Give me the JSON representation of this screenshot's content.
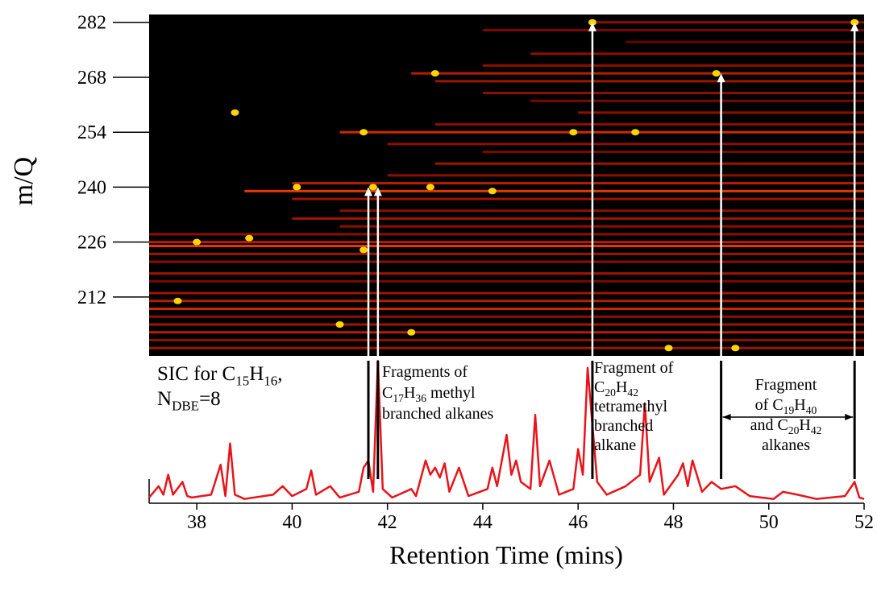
{
  "chart_data": {
    "type": "heatmap-sic",
    "xlabel": "Retention Time (mins)",
    "ylabel": "m/Q",
    "xlim": [
      37,
      52
    ],
    "xticks": [
      38,
      40,
      42,
      44,
      46,
      48,
      50,
      52
    ],
    "ylim": [
      197,
      284
    ],
    "yticks": [
      212,
      226,
      240,
      254,
      268,
      282
    ],
    "streaks": [
      {
        "mz": 282,
        "start": 46.3,
        "end": 52,
        "intensity": 0.5
      },
      {
        "mz": 280,
        "start": 44,
        "end": 52,
        "intensity": 0.4
      },
      {
        "mz": 277,
        "start": 47,
        "end": 52,
        "intensity": 0.3
      },
      {
        "mz": 274,
        "start": 45,
        "end": 52,
        "intensity": 0.5
      },
      {
        "mz": 271,
        "start": 44,
        "end": 52,
        "intensity": 0.5
      },
      {
        "mz": 269,
        "start": 42.5,
        "end": 52,
        "intensity": 0.7
      },
      {
        "mz": 267,
        "start": 43,
        "end": 52,
        "intensity": 0.6
      },
      {
        "mz": 264,
        "start": 44,
        "end": 52,
        "intensity": 0.5
      },
      {
        "mz": 262,
        "start": 45,
        "end": 52,
        "intensity": 0.4
      },
      {
        "mz": 259,
        "start": 46,
        "end": 52,
        "intensity": 0.5
      },
      {
        "mz": 256,
        "start": 43,
        "end": 52,
        "intensity": 0.5
      },
      {
        "mz": 254,
        "start": 41,
        "end": 52,
        "intensity": 0.8
      },
      {
        "mz": 251,
        "start": 42,
        "end": 52,
        "intensity": 0.5
      },
      {
        "mz": 249,
        "start": 44,
        "end": 52,
        "intensity": 0.4
      },
      {
        "mz": 246,
        "start": 43,
        "end": 52,
        "intensity": 0.6
      },
      {
        "mz": 243,
        "start": 42,
        "end": 52,
        "intensity": 0.5
      },
      {
        "mz": 241,
        "start": 40,
        "end": 52,
        "intensity": 0.7
      },
      {
        "mz": 239,
        "start": 39,
        "end": 52,
        "intensity": 0.9
      },
      {
        "mz": 237,
        "start": 40,
        "end": 52,
        "intensity": 0.6
      },
      {
        "mz": 234,
        "start": 41,
        "end": 52,
        "intensity": 0.5
      },
      {
        "mz": 232,
        "start": 40,
        "end": 52,
        "intensity": 0.6
      },
      {
        "mz": 230,
        "start": 41,
        "end": 52,
        "intensity": 0.5
      },
      {
        "mz": 228,
        "start": 37,
        "end": 52,
        "intensity": 0.5
      },
      {
        "mz": 226,
        "start": 37,
        "end": 52,
        "intensity": 0.7
      },
      {
        "mz": 225,
        "start": 37,
        "end": 52,
        "intensity": 0.9
      },
      {
        "mz": 223,
        "start": 37,
        "end": 52,
        "intensity": 0.6
      },
      {
        "mz": 221,
        "start": 37,
        "end": 52,
        "intensity": 0.5
      },
      {
        "mz": 218,
        "start": 37,
        "end": 52,
        "intensity": 0.6
      },
      {
        "mz": 216,
        "start": 37,
        "end": 52,
        "intensity": 0.4
      },
      {
        "mz": 213,
        "start": 37,
        "end": 52,
        "intensity": 0.6
      },
      {
        "mz": 211,
        "start": 37,
        "end": 52,
        "intensity": 0.7
      },
      {
        "mz": 209,
        "start": 37,
        "end": 52,
        "intensity": 0.8
      },
      {
        "mz": 207,
        "start": 37,
        "end": 52,
        "intensity": 0.5
      },
      {
        "mz": 205,
        "start": 37,
        "end": 52,
        "intensity": 0.6
      },
      {
        "mz": 203,
        "start": 37,
        "end": 52,
        "intensity": 0.7
      },
      {
        "mz": 201,
        "start": 37,
        "end": 52,
        "intensity": 0.5
      },
      {
        "mz": 199,
        "start": 37,
        "end": 52,
        "intensity": 0.6
      }
    ],
    "spots": [
      {
        "t": 38.8,
        "mz": 259
      },
      {
        "t": 41.7,
        "mz": 240
      },
      {
        "t": 42.9,
        "mz": 240
      },
      {
        "t": 43.0,
        "mz": 269
      },
      {
        "t": 41.5,
        "mz": 254
      },
      {
        "t": 45.9,
        "mz": 254
      },
      {
        "t": 46.3,
        "mz": 282
      },
      {
        "t": 48.9,
        "mz": 269
      },
      {
        "t": 51.8,
        "mz": 282
      },
      {
        "t": 39.1,
        "mz": 227
      },
      {
        "t": 38.0,
        "mz": 226
      },
      {
        "t": 41.5,
        "mz": 224
      },
      {
        "t": 37.6,
        "mz": 211
      },
      {
        "t": 41.0,
        "mz": 205
      },
      {
        "t": 47.9,
        "mz": 199
      },
      {
        "t": 49.3,
        "mz": 199
      },
      {
        "t": 42.5,
        "mz": 203
      },
      {
        "t": 40.1,
        "mz": 240
      },
      {
        "t": 44.2,
        "mz": 239
      },
      {
        "t": 47.2,
        "mz": 254
      }
    ],
    "sic": {
      "color": "#e8141a",
      "ylim": [
        0,
        100
      ],
      "x": [
        37.0,
        37.2,
        37.3,
        37.4,
        37.5,
        37.7,
        37.8,
        37.9,
        38.3,
        38.5,
        38.6,
        38.7,
        38.8,
        39.0,
        39.6,
        39.8,
        40.0,
        40.3,
        40.4,
        40.5,
        40.8,
        41.0,
        41.4,
        41.5,
        41.6,
        41.7,
        41.8,
        41.9,
        42.1,
        42.5,
        42.6,
        42.8,
        42.9,
        43.0,
        43.1,
        43.2,
        43.3,
        43.5,
        43.7,
        44.1,
        44.2,
        44.3,
        44.5,
        44.6,
        44.7,
        44.8,
        45.0,
        45.1,
        45.2,
        45.4,
        45.6,
        45.9,
        46.0,
        46.1,
        46.2,
        46.4,
        46.6,
        47.0,
        47.3,
        47.4,
        47.5,
        47.7,
        47.8,
        48.1,
        48.2,
        48.3,
        48.4,
        48.6,
        48.8,
        49.0,
        49.3,
        49.6,
        50.1,
        50.3,
        50.6,
        51.0,
        51.6,
        51.8,
        51.9,
        52.0
      ],
      "values": [
        4,
        12,
        6,
        20,
        6,
        15,
        5,
        4,
        6,
        27,
        5,
        42,
        6,
        3,
        6,
        12,
        5,
        10,
        23,
        6,
        12,
        4,
        8,
        25,
        30,
        8,
        100,
        10,
        4,
        10,
        5,
        30,
        20,
        25,
        18,
        28,
        8,
        25,
        5,
        10,
        25,
        12,
        48,
        20,
        30,
        15,
        10,
        62,
        12,
        30,
        6,
        10,
        38,
        20,
        95,
        15,
        6,
        12,
        20,
        70,
        15,
        32,
        6,
        20,
        28,
        12,
        30,
        8,
        15,
        10,
        12,
        5,
        3,
        8,
        6,
        3,
        5,
        15,
        4,
        3
      ]
    },
    "arrows": [
      {
        "t": 41.6,
        "mz": 240
      },
      {
        "t": 41.8,
        "mz": 240
      },
      {
        "t": 46.3,
        "mz": 282
      },
      {
        "t": 49.0,
        "mz": 269
      },
      {
        "t": 51.8,
        "mz": 282
      }
    ],
    "span": [
      49.0,
      51.8
    ],
    "annotations": [
      {
        "lines": [
          [
            {
              "text": "SIC for C"
            },
            {
              "sub": "15"
            },
            {
              "text": "H"
            },
            {
              "sub": "16"
            },
            {
              "text": ","
            }
          ],
          [
            {
              "text": "N"
            },
            {
              "sub": "DBE"
            },
            {
              "text": "=8"
            }
          ]
        ]
      },
      {
        "lines": [
          [
            {
              "text": "Fragments of"
            }
          ],
          [
            {
              "text": "C"
            },
            {
              "sub": "17"
            },
            {
              "text": "H"
            },
            {
              "sub": "36"
            },
            {
              "text": " methyl"
            }
          ],
          [
            {
              "text": "branched alkanes"
            }
          ]
        ]
      },
      {
        "lines": [
          [
            {
              "text": "Fragment of"
            }
          ],
          [
            {
              "text": "C"
            },
            {
              "sub": "20"
            },
            {
              "text": "H"
            },
            {
              "sub": "42"
            }
          ],
          [
            {
              "text": "tetramethyl"
            }
          ],
          [
            {
              "text": "branched"
            }
          ],
          [
            {
              "text": "alkane"
            }
          ]
        ]
      },
      {
        "lines": [
          [
            {
              "text": "Fragment"
            }
          ],
          [
            {
              "text": "of C"
            },
            {
              "sub": "19"
            },
            {
              "text": "H"
            },
            {
              "sub": "40"
            }
          ],
          [
            {
              "text": "and C"
            },
            {
              "sub": "20"
            },
            {
              "text": "H"
            },
            {
              "sub": "42"
            }
          ],
          [
            {
              "text": "alkanes"
            }
          ]
        ]
      }
    ]
  }
}
